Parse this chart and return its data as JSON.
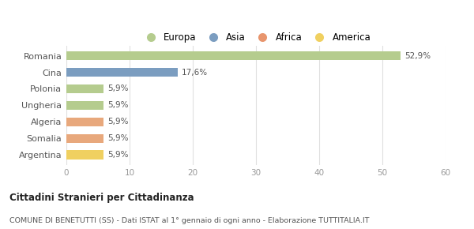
{
  "categories": [
    "Romania",
    "Cina",
    "Polonia",
    "Ungheria",
    "Algeria",
    "Somalia",
    "Argentina"
  ],
  "values": [
    52.9,
    17.6,
    5.9,
    5.9,
    5.9,
    5.9,
    5.9
  ],
  "labels": [
    "52,9%",
    "17,6%",
    "5,9%",
    "5,9%",
    "5,9%",
    "5,9%",
    "5,9%"
  ],
  "colors": [
    "#b5cc8e",
    "#7b9dc0",
    "#b5cc8e",
    "#b5cc8e",
    "#e8a87c",
    "#e8a87c",
    "#f0d060"
  ],
  "legend": [
    {
      "label": "Europa",
      "color": "#b5cc8e"
    },
    {
      "label": "Asia",
      "color": "#7b9dc0"
    },
    {
      "label": "Africa",
      "color": "#e8956d"
    },
    {
      "label": "America",
      "color": "#f0d060"
    }
  ],
  "xlim": [
    0,
    60
  ],
  "xticks": [
    0,
    10,
    20,
    30,
    40,
    50,
    60
  ],
  "title": "Cittadini Stranieri per Cittadinanza",
  "subtitle": "COMUNE DI BENETUTTI (SS) - Dati ISTAT al 1° gennaio di ogni anno - Elaborazione TUTTITALIA.IT",
  "background_color": "#ffffff",
  "grid_color": "#e0e0e0"
}
